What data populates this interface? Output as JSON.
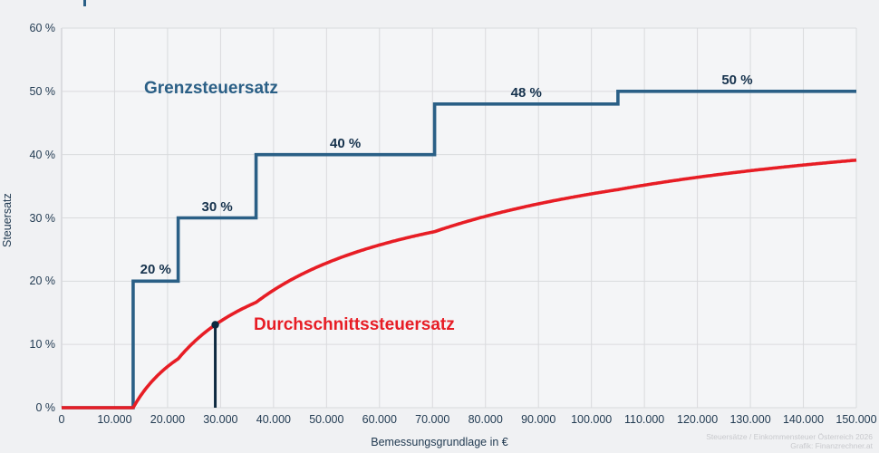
{
  "attribution": {
    "line1": "Steuersätze / Einkommensteuer Österreich 2026",
    "line2": "Grafik: Finanzrechner.at"
  },
  "colors": {
    "marginal_line": "#2a5f86",
    "average_line": "#e71d25",
    "marker": "#0d2940",
    "axis_text": "#223b52",
    "step_label_text": "#16324d",
    "grid": "#d9dadd",
    "axis_line": "#c3c5cb",
    "plot_background": "#f4f5f7",
    "page_background": "#f0f1f3",
    "attribution_text": "#c8c9cd"
  },
  "chart_data": {
    "type": "line",
    "title": "",
    "xlabel": "Bemessungsgrundlage in €",
    "ylabel": "Steuersatz",
    "xlim": [
      0,
      150000
    ],
    "ylim": [
      0,
      60
    ],
    "grid": true,
    "x_tick_step": 10000,
    "y_tick_step": 10,
    "x_tick_labels": [
      "0",
      "10.000",
      "20.000",
      "30.000",
      "40.000",
      "50.000",
      "60.000",
      "70.000",
      "80.000",
      "90.000",
      "100.000",
      "110.000",
      "120.000",
      "130.000",
      "140.000",
      "150.000"
    ],
    "y_tick_labels": [
      "0 %",
      "10 %",
      "20 %",
      "30 %",
      "40 %",
      "50 %",
      "60 %"
    ],
    "series": [
      {
        "name": "Grenzsteuersatz",
        "style": "step",
        "brackets": [
          {
            "from": 0,
            "to": 13500,
            "rate": 0,
            "label": ""
          },
          {
            "from": 13500,
            "to": 22000,
            "rate": 20,
            "label": "20 %"
          },
          {
            "from": 22000,
            "to": 36700,
            "rate": 30,
            "label": "30 %"
          },
          {
            "from": 36700,
            "to": 70400,
            "rate": 40,
            "label": "40 %"
          },
          {
            "from": 70400,
            "to": 105000,
            "rate": 48,
            "label": "48 %"
          },
          {
            "from": 105000,
            "to": 150000,
            "rate": 50,
            "label": "50 %"
          }
        ]
      },
      {
        "name": "Durchschnittssteuersatz",
        "style": "curve-average-of-brackets",
        "sample_points": {
          "x": [
            0,
            13500,
            20000,
            30000,
            40000,
            50000,
            60000,
            70000,
            80000,
            90000,
            100000,
            110000,
            120000,
            130000,
            140000,
            150000
          ],
          "y": [
            0,
            0,
            6.5,
            13.7,
            18.6,
            22.9,
            25.7,
            27.8,
            30.2,
            32.2,
            33.8,
            35.2,
            36.4,
            37.5,
            38.4,
            39.1
          ]
        }
      }
    ],
    "marker": {
      "x": 29000,
      "y": 13.1
    }
  }
}
